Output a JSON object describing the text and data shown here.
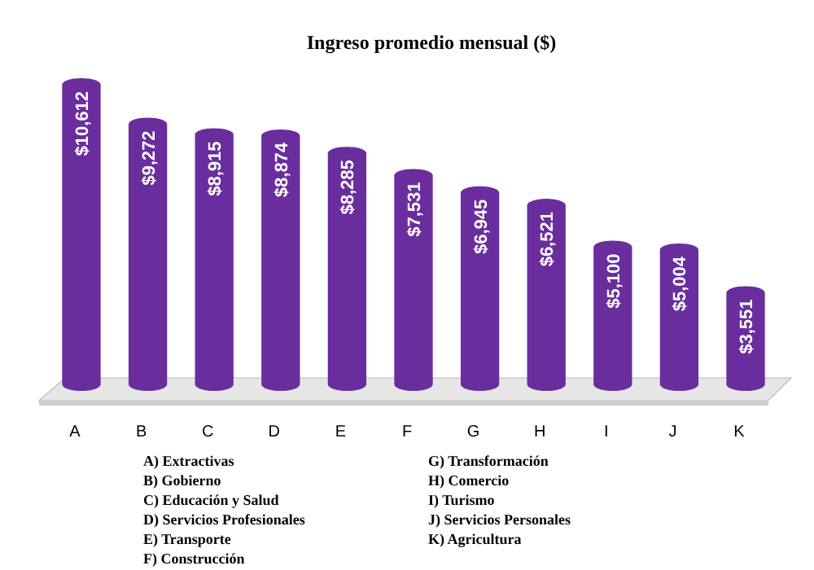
{
  "chart_data": {
    "type": "bar",
    "title": "Ingreso promedio mensual ($)",
    "categories": [
      "A",
      "B",
      "C",
      "D",
      "E",
      "F",
      "G",
      "H",
      "I",
      "J",
      "K"
    ],
    "values": [
      10612,
      9272,
      8915,
      8874,
      8285,
      7531,
      6945,
      6521,
      5100,
      5004,
      3551
    ],
    "value_labels": [
      "$10,612",
      "$9,272",
      "$8,915",
      "$8,874",
      "$8,285",
      "$7,531",
      "$6,945",
      "$6,521",
      "$5,100",
      "$5,004",
      "$3,551"
    ],
    "color": "#6a2d9e",
    "annotations": [
      "A) Extractivas",
      "B) Gobierno",
      "C) Educación y Salud",
      "D) Servicios Profesionales",
      "E) Transporte",
      "F) Construcción",
      "G) Transformación",
      "H) Comercio",
      "I) Turismo",
      "J) Servicios Personales",
      "K) Agricultura"
    ]
  }
}
